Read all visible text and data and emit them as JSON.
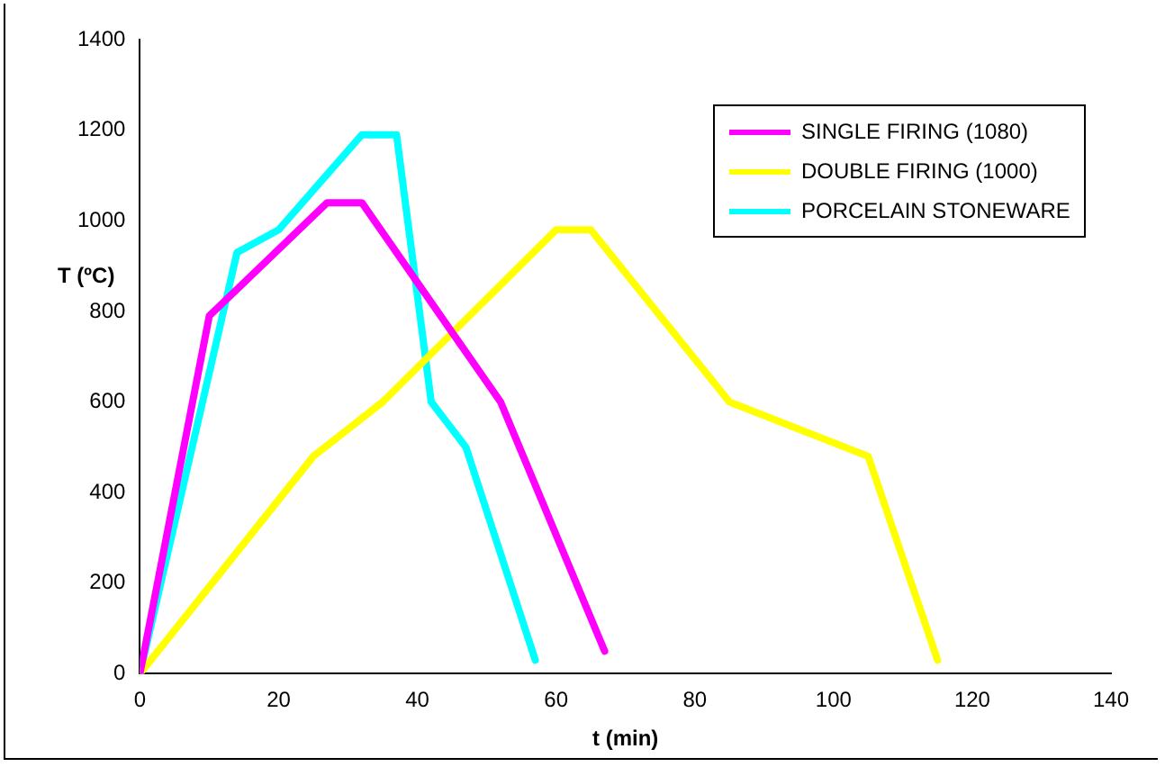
{
  "chart_data": {
    "type": "line",
    "xlabel": "t (min)",
    "ylabel": "T (ºC)",
    "xlim": [
      0,
      140
    ],
    "xticks": [
      0,
      20,
      40,
      60,
      80,
      100,
      120,
      140
    ],
    "ylim": [
      0,
      1400
    ],
    "yticks": [
      0,
      200,
      400,
      600,
      800,
      1000,
      1200,
      1400
    ],
    "grid": false,
    "legend": "top right",
    "marker": "none",
    "line_style": "solid",
    "series": [
      {
        "name": "SINGLE FIRING (1080)",
        "color": "#ff00ff",
        "x": [
          0,
          10,
          27,
          32,
          52,
          67
        ],
        "values": [
          0,
          790,
          1040,
          1040,
          600,
          50
        ]
      },
      {
        "name": "DOUBLE FIRING (1000)",
        "color": "#ffff00",
        "x": [
          0,
          25,
          35,
          60,
          65,
          85,
          105,
          115
        ],
        "values": [
          0,
          480,
          600,
          980,
          980,
          600,
          480,
          30
        ]
      },
      {
        "name": "PORCELAIN STONEWARE",
        "color": "#00ffff",
        "x": [
          0,
          14,
          20,
          32,
          37,
          42,
          47,
          57
        ],
        "values": [
          0,
          930,
          980,
          1190,
          1190,
          600,
          500,
          30
        ]
      }
    ]
  }
}
